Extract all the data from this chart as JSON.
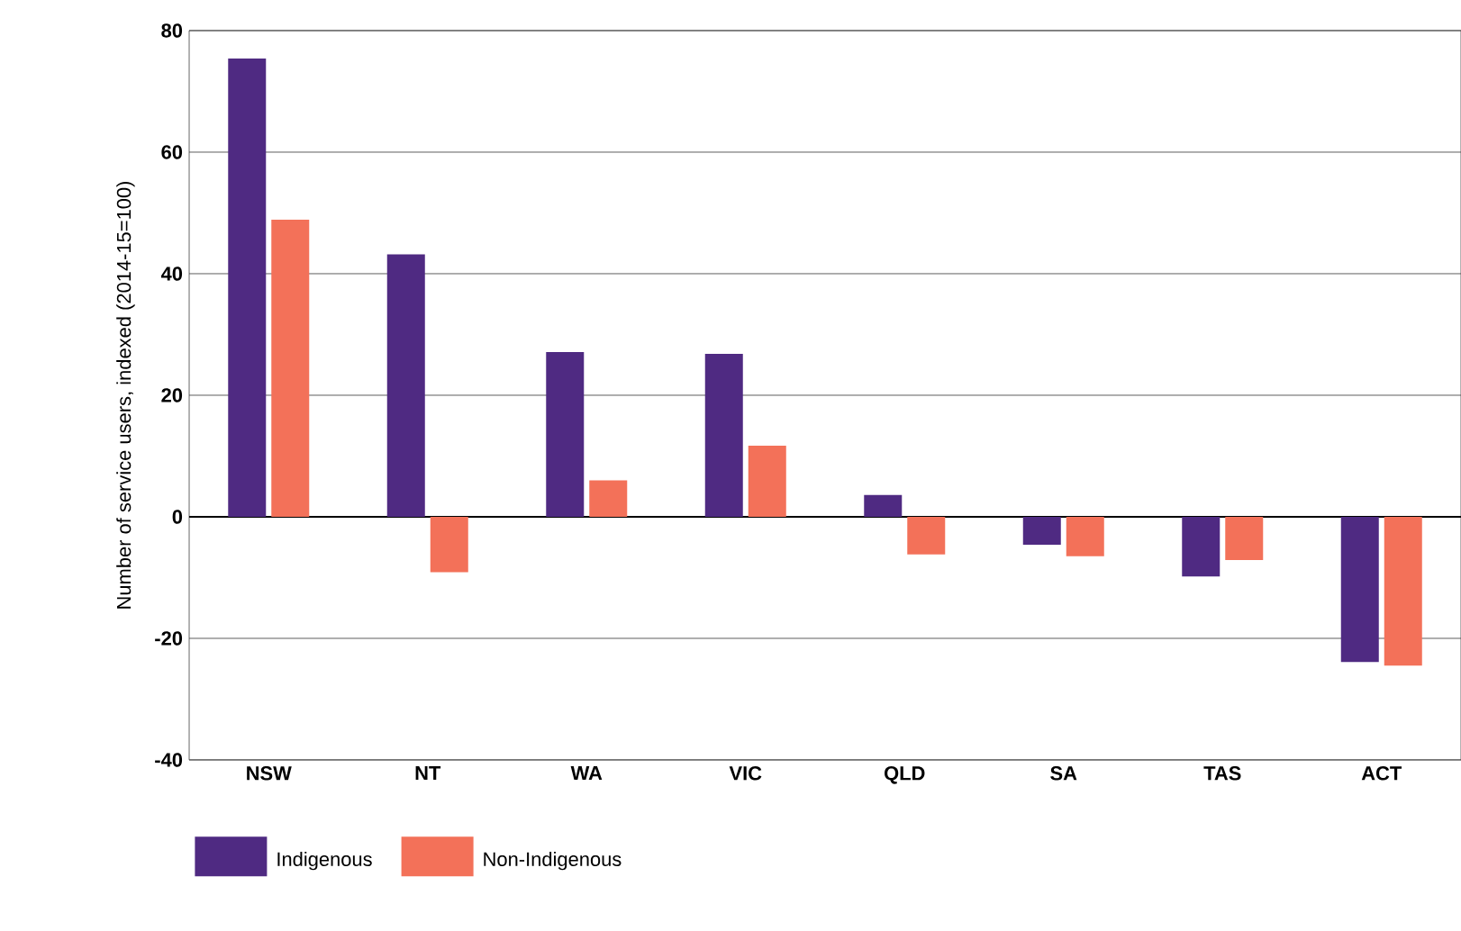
{
  "chart_data": {
    "type": "bar",
    "ylabel": "Number of service users, indexed (2014-15=100)",
    "categories": [
      "NSW",
      "NT",
      "WA",
      "VIC",
      "QLD",
      "SA",
      "TAS",
      "ACT"
    ],
    "series": [
      {
        "name": "Indigenous",
        "color": "#4f2a82",
        "values": [
          75.4,
          43.2,
          27.1,
          26.8,
          3.6,
          -4.6,
          -9.8,
          -23.9
        ]
      },
      {
        "name": "Non-Indigenous",
        "color": "#f37159",
        "values": [
          48.9,
          -9.1,
          6.0,
          11.7,
          -6.2,
          -6.5,
          -7.1,
          -24.5
        ]
      }
    ],
    "ylim": [
      -40,
      80
    ],
    "yticks": [
      -40,
      -20,
      0,
      20,
      40,
      60,
      80
    ],
    "grid": "y",
    "legend": "bottom left"
  }
}
